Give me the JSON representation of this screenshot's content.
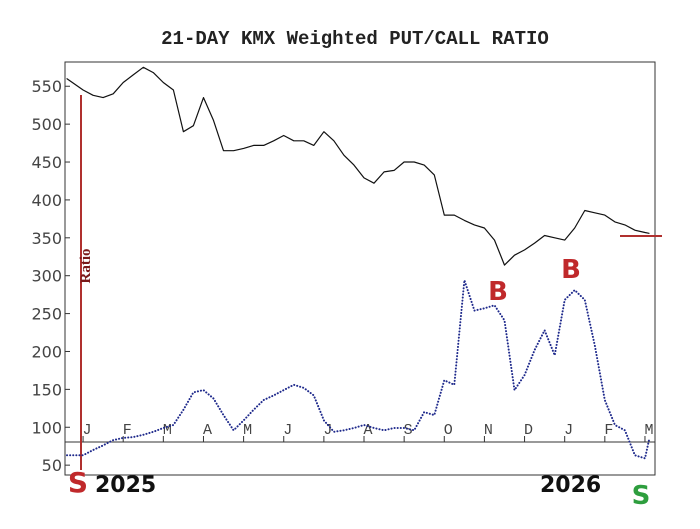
{
  "chart_data": {
    "type": "line",
    "title": "21-DAY KMX Weighted PUT/CALL RATIO",
    "ylabel": "Ratio",
    "xlim": [
      -0.45,
      14.25
    ],
    "ylim": [
      37,
      582
    ],
    "yticks": [
      50,
      100,
      150,
      200,
      250,
      300,
      350,
      400,
      450,
      500,
      550
    ],
    "xticks": [
      {
        "value": 0,
        "label": "J"
      },
      {
        "value": 1,
        "label": "F"
      },
      {
        "value": 2,
        "label": "M"
      },
      {
        "value": 3,
        "label": "A"
      },
      {
        "value": 4,
        "label": "M"
      },
      {
        "value": 5,
        "label": "J"
      },
      {
        "value": 6,
        "label": "J"
      },
      {
        "value": 7,
        "label": "A"
      },
      {
        "value": 8,
        "label": "S"
      },
      {
        "value": 9,
        "label": "O"
      },
      {
        "value": 10,
        "label": "N"
      },
      {
        "value": 11,
        "label": "D"
      },
      {
        "value": 12,
        "label": "J"
      },
      {
        "value": 13,
        "label": "F"
      },
      {
        "value": 14,
        "label": "M"
      }
    ],
    "x": [
      -0.4,
      0,
      0.25,
      0.5,
      0.75,
      1,
      1.25,
      1.5,
      1.75,
      2,
      2.25,
      2.5,
      2.75,
      3,
      3.25,
      3.5,
      3.75,
      4,
      4.25,
      4.5,
      4.75,
      5,
      5.25,
      5.5,
      5.75,
      6,
      6.25,
      6.5,
      6.75,
      7,
      7.25,
      7.5,
      7.75,
      8,
      8.25,
      8.5,
      8.75,
      9,
      9.25,
      9.5,
      9.75,
      10,
      10.25,
      10.5,
      10.75,
      11,
      11.25,
      11.5,
      11.75,
      12,
      12.25,
      12.5,
      12.75,
      13,
      13.25,
      13.5,
      13.75,
      14,
      14.1
    ],
    "series": [
      {
        "color": "#111111",
        "style": "solid",
        "values": [
          560,
          545,
          538,
          535,
          540,
          555,
          565,
          575,
          568,
          555,
          545,
          490,
          498,
          535,
          505,
          465,
          465,
          468,
          472,
          472,
          478,
          485,
          478,
          478,
          472,
          490,
          478,
          459,
          446,
          429,
          422,
          437,
          439,
          450,
          450,
          446,
          433,
          380,
          380,
          373,
          367,
          363,
          347,
          314,
          327,
          334,
          343,
          353,
          350,
          347,
          363,
          386,
          383,
          380,
          371,
          367,
          360,
          357,
          356
        ]
      },
      {
        "color": "#1f2a8c",
        "style": "dotted",
        "values": [
          63,
          63,
          70,
          76,
          83,
          86,
          87,
          90,
          94,
          99,
          103,
          123,
          146,
          149,
          138,
          116,
          96,
          109,
          123,
          136,
          142,
          149,
          156,
          152,
          142,
          109,
          94,
          96,
          99,
          103,
          99,
          96,
          99,
          99,
          96,
          120,
          116,
          162,
          156,
          294,
          254,
          257,
          261,
          241,
          149,
          169,
          202,
          228,
          195,
          268,
          281,
          268,
          208,
          136,
          103,
          96,
          63,
          59,
          83
        ]
      }
    ],
    "annotations": [
      {
        "text": "S",
        "color": "#c0292b"
      },
      {
        "text": "2025",
        "color": "#111111"
      },
      {
        "text": "B",
        "color": "#c0292b"
      },
      {
        "text": "B",
        "color": "#c0292b"
      },
      {
        "text": "2026",
        "color": "#111111"
      },
      {
        "text": "S",
        "color": "#2e9e3e"
      }
    ]
  }
}
